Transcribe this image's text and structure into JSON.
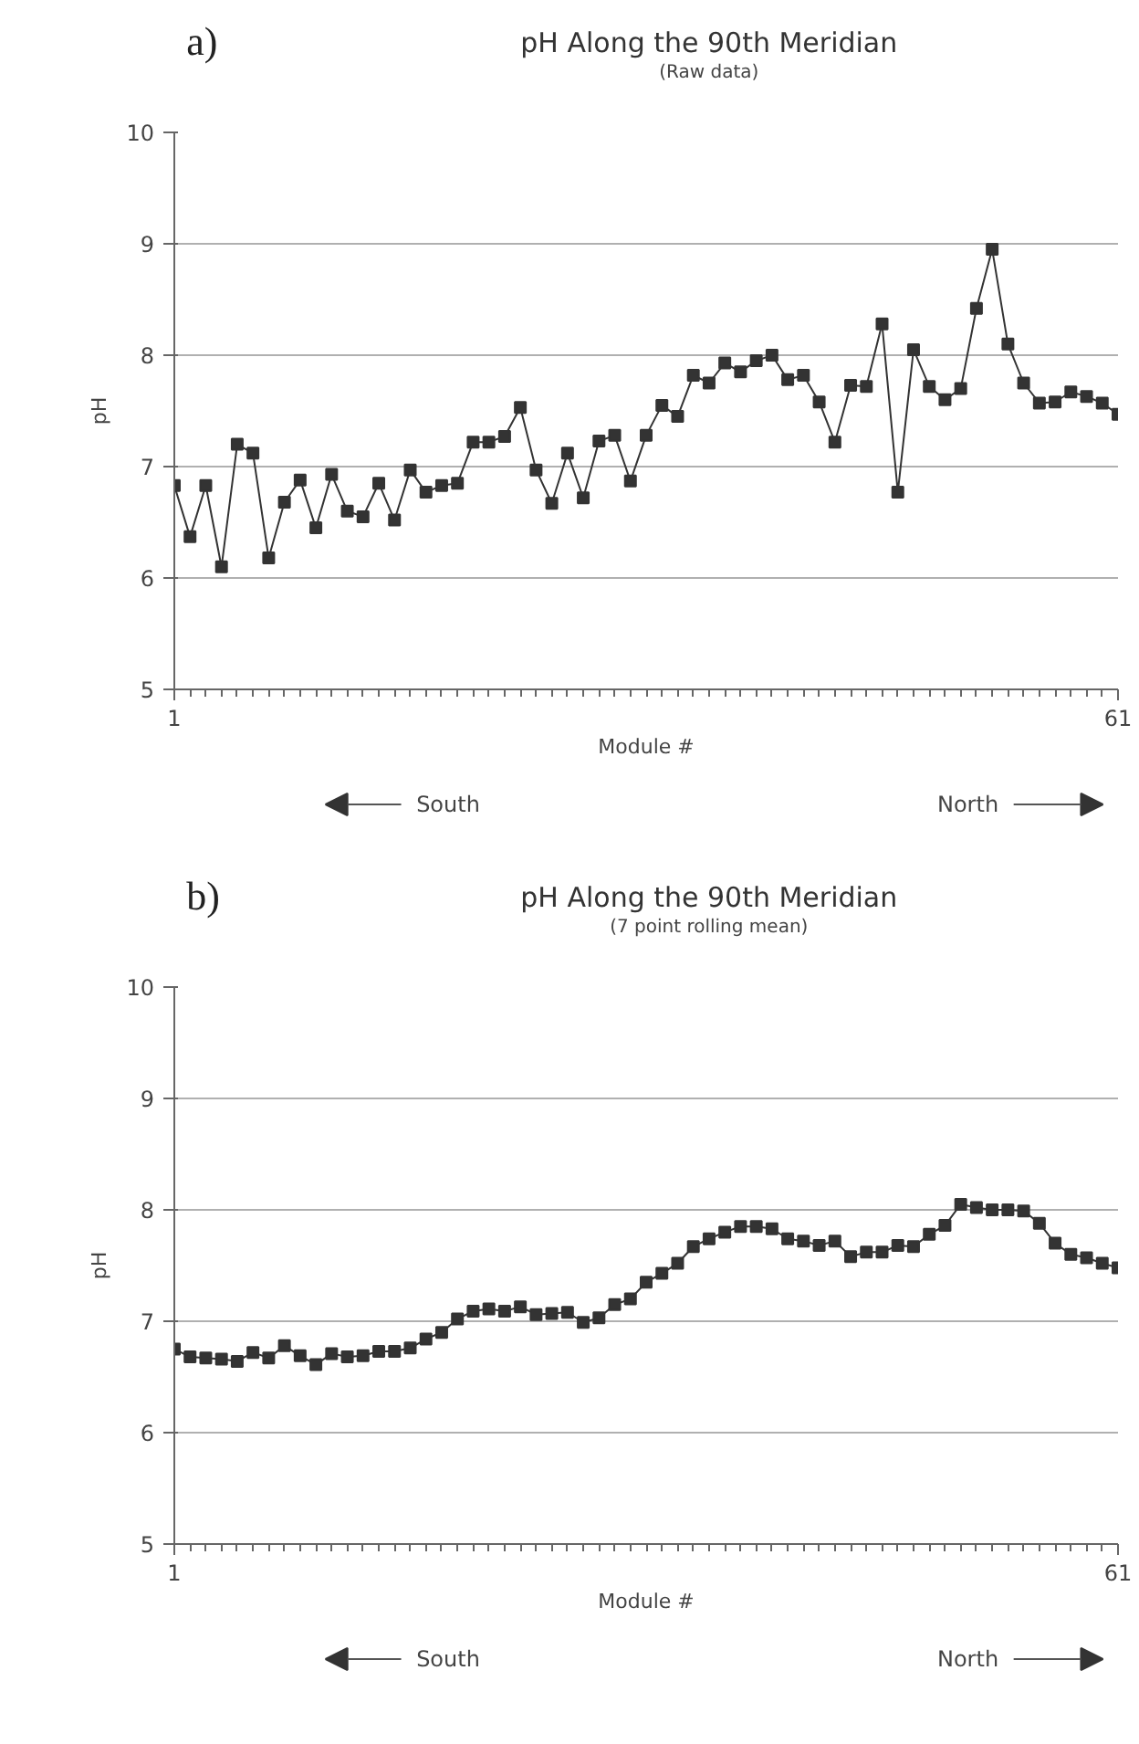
{
  "chart_data": [
    {
      "type": "line",
      "title": "pH Along the 90th Meridian",
      "subtitle": "(Raw data)",
      "xlabel": "Module #",
      "ylabel": "pH",
      "annotations": [
        "a)",
        "South",
        "North"
      ],
      "x": [
        1,
        2,
        3,
        4,
        5,
        6,
        7,
        8,
        9,
        10,
        11,
        12,
        13,
        14,
        15,
        16,
        17,
        18,
        19,
        20,
        21,
        22,
        23,
        24,
        25,
        26,
        27,
        28,
        29,
        30,
        31,
        32,
        33,
        34,
        35,
        36,
        37,
        38,
        39,
        40,
        41,
        42,
        43,
        44,
        45,
        46,
        47,
        48,
        49,
        50,
        51,
        52,
        53,
        54,
        55,
        56,
        57,
        58,
        59,
        60,
        61
      ],
      "series": [
        {
          "color": "#333333",
          "values": [
            6.83,
            6.37,
            6.83,
            6.1,
            7.2,
            7.12,
            6.18,
            6.68,
            6.88,
            6.45,
            6.93,
            6.6,
            6.55,
            6.85,
            6.52,
            6.97,
            6.77,
            6.83,
            6.85,
            7.22,
            7.22,
            7.27,
            7.53,
            6.97,
            6.67,
            7.12,
            6.72,
            7.23,
            7.28,
            6.87,
            7.28,
            7.55,
            7.45,
            7.82,
            7.75,
            7.93,
            7.85,
            7.95,
            8.0,
            7.78,
            7.82,
            7.58,
            7.22,
            7.73,
            7.72,
            8.28,
            6.77,
            8.05,
            7.72,
            7.6,
            7.7,
            8.42,
            8.95,
            8.1,
            7.75,
            7.57,
            7.58,
            7.67,
            7.63,
            7.57,
            7.47
          ]
        }
      ],
      "xlim": [
        1,
        61
      ],
      "xticks": [
        1,
        61
      ],
      "ylim": [
        5,
        10
      ],
      "yticks": [
        5,
        6,
        7,
        8,
        9,
        10
      ],
      "grid": "y",
      "marker": "square",
      "line_style": "solid"
    },
    {
      "type": "line",
      "title": "pH Along the 90th Meridian",
      "subtitle": "(7 point rolling mean)",
      "xlabel": "Module #",
      "ylabel": "pH",
      "annotations": [
        "b)",
        "South",
        "North"
      ],
      "x": [
        1,
        2,
        3,
        4,
        5,
        6,
        7,
        8,
        9,
        10,
        11,
        12,
        13,
        14,
        15,
        16,
        17,
        18,
        19,
        20,
        21,
        22,
        23,
        24,
        25,
        26,
        27,
        28,
        29,
        30,
        31,
        32,
        33,
        34,
        35,
        36,
        37,
        38,
        39,
        40,
        41,
        42,
        43,
        44,
        45,
        46,
        47,
        48,
        49,
        50,
        51,
        52,
        53,
        54,
        55,
        56,
        57,
        58,
        59,
        60,
        61
      ],
      "series": [
        {
          "color": "#333333",
          "values": [
            6.75,
            6.68,
            6.67,
            6.66,
            6.64,
            6.72,
            6.67,
            6.78,
            6.69,
            6.61,
            6.71,
            6.68,
            6.69,
            6.73,
            6.73,
            6.76,
            6.84,
            6.9,
            7.02,
            7.09,
            7.11,
            7.09,
            7.13,
            7.06,
            7.07,
            7.08,
            6.99,
            7.03,
            7.15,
            7.2,
            7.35,
            7.43,
            7.52,
            7.67,
            7.74,
            7.8,
            7.85,
            7.85,
            7.83,
            7.74,
            7.72,
            7.68,
            7.72,
            7.58,
            7.62,
            7.62,
            7.68,
            7.67,
            7.78,
            7.86,
            8.05,
            8.02,
            8.0,
            8.0,
            7.99,
            7.88,
            7.7,
            7.6,
            7.57,
            7.52,
            7.48
          ]
        }
      ],
      "xlim": [
        1,
        61
      ],
      "xticks": [
        1,
        61
      ],
      "ylim": [
        5,
        10
      ],
      "yticks": [
        5,
        6,
        7,
        8,
        9,
        10
      ],
      "grid": "y",
      "marker": "square",
      "line_style": "solid"
    }
  ]
}
